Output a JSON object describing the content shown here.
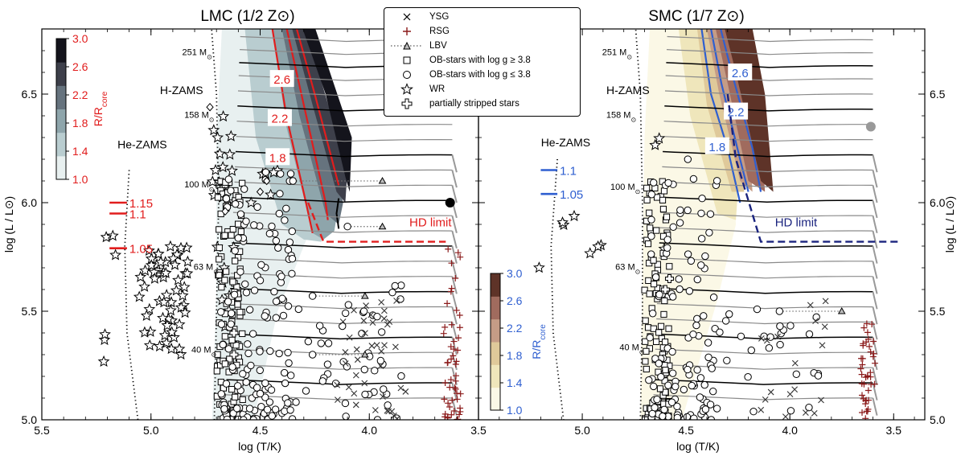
{
  "colors": {
    "red": "#e11d1d",
    "blue": "#2f5fd0",
    "navy": "#1a237e",
    "rsg": "#8b1a1a",
    "lmc_band": [
      "#e8f0f0",
      "#b9cdd0",
      "#8ea5ab",
      "#66737e",
      "#3d3f4a",
      "#14141c"
    ],
    "smc_band": [
      "#fbf8e6",
      "#efe6bb",
      "#dfc99a",
      "#c59c86",
      "#a06b5e",
      "#5e3328"
    ]
  },
  "chart_data": [
    {
      "type": "scatter",
      "panel": "LMC",
      "title": "LMC (1/2 Z⊙)",
      "xlabel": "log (T/K)",
      "ylabel": "log (L / L⊙)",
      "xlim": [
        5.5,
        3.5
      ],
      "ylim": [
        5.0,
        6.8
      ],
      "xticks": [
        "5.5",
        "5.0",
        "4.5",
        "4.0",
        "3.5"
      ],
      "yticks": [
        "5.0",
        "5.5",
        "6.0",
        "6.5"
      ],
      "colorbar": {
        "label": "R/R_core",
        "label_main": "R/R",
        "label_sub": "core",
        "ticks": [
          "1.0",
          "1.4",
          "1.8",
          "2.2",
          "2.6",
          "3.0"
        ]
      },
      "contour_labels": [
        "2.6",
        "2.2",
        "1.8"
      ],
      "mass_labels": [
        "251 M⊙",
        "158 M⊙",
        "100 M⊙",
        "63 M⊙",
        "40 M⊙"
      ],
      "annotations": {
        "hzams": "H-ZAMS",
        "hezams": "He-ZAMS",
        "hd_limit": "HD limit"
      },
      "he_zams_markers": [
        {
          "label": "1.15",
          "logL": 6.0
        },
        {
          "label": "1.1",
          "logL": 5.95
        },
        {
          "label": "1.05",
          "logL": 5.79
        }
      ]
    },
    {
      "type": "scatter",
      "panel": "SMC",
      "title": "SMC (1/7 Z⊙)",
      "xlabel": "log (T/K)",
      "ylabel": "log (L / L⊙)",
      "xlim": [
        5.5,
        3.35
      ],
      "ylim": [
        5.0,
        6.8
      ],
      "xticks": [
        "5.0",
        "4.5",
        "4.0",
        "3.5"
      ],
      "yticks": [
        "5.0",
        "5.5",
        "6.0",
        "6.5"
      ],
      "colorbar": {
        "label": "R/R_core",
        "label_main": "R/R",
        "label_sub": "core",
        "ticks": [
          "1.0",
          "1.4",
          "1.8",
          "2.2",
          "2.6",
          "3.0"
        ]
      },
      "contour_labels": [
        "2.6",
        "2.2",
        "1.8"
      ],
      "mass_labels": [
        "251 M⊙",
        "158 M⊙",
        "100 M⊙",
        "63 M⊙",
        "40 M⊙"
      ],
      "annotations": {
        "hzams": "H-ZAMS",
        "hezams": "He-ZAMS",
        "hd_limit": "HD limit"
      },
      "he_zams_markers": [
        {
          "label": "1.1",
          "logL": 6.15
        },
        {
          "label": "1.05",
          "logL": 6.04
        }
      ]
    }
  ],
  "legend": {
    "items": [
      {
        "symbol": "x",
        "label": "YSG"
      },
      {
        "symbol": "plus",
        "label": "RSG"
      },
      {
        "symbol": "lbv",
        "label": "LBV"
      },
      {
        "symbol": "square",
        "label": "OB-stars with log g ≥ 3.8"
      },
      {
        "symbol": "circle",
        "label": "OB-stars with log g ≤ 3.8"
      },
      {
        "symbol": "star",
        "label": "WR"
      },
      {
        "symbol": "fatplus",
        "label": "partially stripped stars"
      }
    ]
  }
}
